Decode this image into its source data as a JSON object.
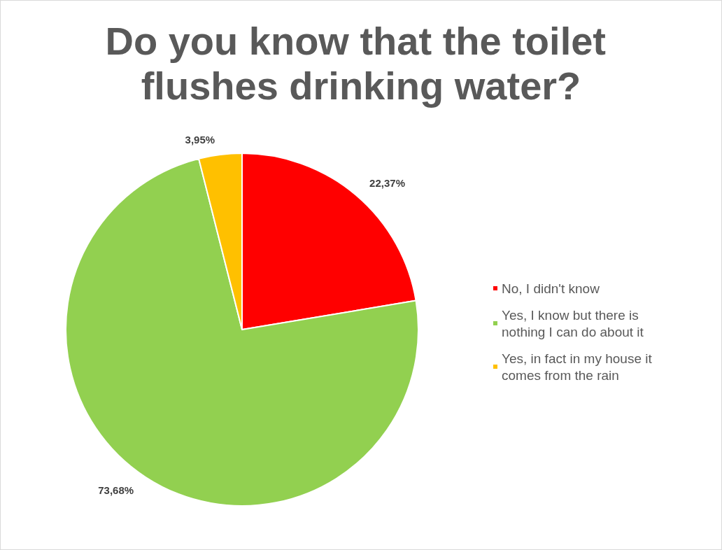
{
  "chart_data": {
    "type": "pie",
    "title": "Do you know that the toilet flushes drinking water?",
    "categories": [
      "No, I didn't know",
      "Yes, I know but there is nothing I can do about it",
      "Yes, in fact in my house it comes from the rain"
    ],
    "values": [
      22.37,
      73.68,
      3.95
    ],
    "colors": [
      "#ff0000",
      "#92d050",
      "#ffc000"
    ],
    "value_labels": [
      "22,37%",
      "73,68%",
      "3,95%"
    ],
    "legend": "right"
  }
}
